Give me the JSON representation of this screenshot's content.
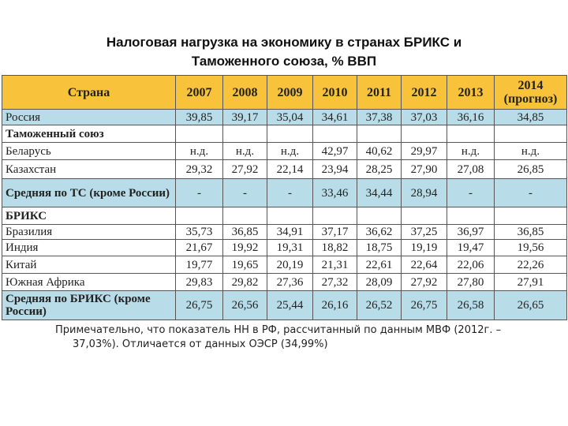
{
  "title": "Налоговая нагрузка на экономику в странах БРИКС и Таможенного союза, % ВВП",
  "table": {
    "header": [
      "Страна",
      "2007",
      "2008",
      "2009",
      "2010",
      "2011",
      "2012",
      "2013",
      "2014\n(прогноз)"
    ],
    "rows": [
      [
        "Россия",
        "39,85",
        "39,17",
        "35,04",
        "34,61",
        "37,38",
        "37,03",
        "36,16",
        "34,85"
      ],
      [
        "Таможенный союз"
      ],
      [
        "Беларусь",
        "н.д.",
        "н.д.",
        "н.д.",
        "42,97",
        "40,62",
        "29,97",
        "н.д.",
        "н.д."
      ],
      [
        "Казахстан",
        "29,32",
        "27,92",
        "22,14",
        "23,94",
        "28,25",
        "27,90",
        "27,08",
        "26,85"
      ],
      [
        "Средняя по ТС (кроме России)",
        "-",
        "-",
        "-",
        "33,46",
        "34,44",
        "28,94",
        "-",
        "-"
      ],
      [
        "БРИКС"
      ],
      [
        "Бразилия",
        "35,73",
        "36,85",
        "34,91",
        "37,17",
        "36,62",
        "37,25",
        "36,97",
        "36,85"
      ],
      [
        "Индия",
        "21,67",
        "19,92",
        "19,31",
        "18,82",
        "18,75",
        "19,19",
        "19,47",
        "19,56"
      ],
      [
        "Китай",
        "19,77",
        "19,65",
        "20,19",
        "21,31",
        "22,61",
        "22,64",
        "22,06",
        "22,26"
      ],
      [
        "Южная Африка",
        "29,83",
        "29,82",
        "27,36",
        "27,32",
        "28,09",
        "27,92",
        "27,80",
        "27,91"
      ],
      [
        "Средняя по БРИКС (кроме России)",
        "26,75",
        "26,56",
        "25,44",
        "26,16",
        "26,52",
        "26,75",
        "26,58",
        "26,65"
      ]
    ]
  },
  "note": "Примечательно, что показатель НН в РФ, рассчитанный по данным МВФ (2012г. – 37,03%). Отличается от данных ОЭСР (34,99%)"
}
